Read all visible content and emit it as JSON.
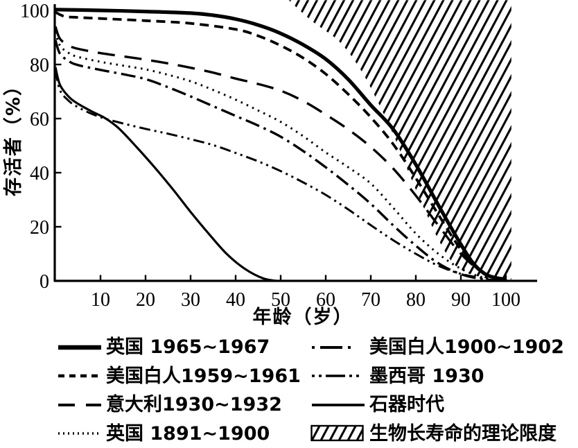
{
  "figure": {
    "x_axis_title": "年龄（岁）",
    "y_axis_title": "存活者（%）",
    "y_ticks": [
      "100",
      "80",
      "60",
      "40",
      "20",
      "0"
    ],
    "x_ticks": [
      "10",
      "20",
      "30",
      "40",
      "50",
      "60",
      "70",
      "80",
      "90",
      "100"
    ]
  },
  "colors": {
    "ink": "#000000",
    "background": "#ffffff"
  },
  "chart_data": {
    "type": "line",
    "title": "",
    "xlabel": "年龄（岁）",
    "ylabel": "存活者（%）",
    "xlim": [
      0,
      105
    ],
    "ylim": [
      0,
      100
    ],
    "grid": false,
    "legend_position": "below",
    "x_unit": "岁",
    "y_unit": "%",
    "series": [
      {
        "id": "uk-1965-1967",
        "name": "英国 1965~1967",
        "style": "thick-solid",
        "points": [
          [
            0,
            100.3
          ],
          [
            10,
            100
          ],
          [
            20,
            99.6
          ],
          [
            30,
            99
          ],
          [
            35,
            98.2
          ],
          [
            40,
            96.8
          ],
          [
            45,
            94.6
          ],
          [
            50,
            91.5
          ],
          [
            55,
            87.3
          ],
          [
            60,
            82
          ],
          [
            65,
            74.5
          ],
          [
            70,
            65
          ],
          [
            75,
            56
          ],
          [
            80,
            43
          ],
          [
            85,
            28
          ],
          [
            90,
            13.5
          ],
          [
            93,
            6
          ],
          [
            96,
            2
          ],
          [
            100,
            0.5
          ]
        ]
      },
      {
        "id": "us-white-1959-1961",
        "name": "美国白人1959~1961",
        "style": "dashed",
        "points": [
          [
            0,
            99.3
          ],
          [
            2,
            97.8
          ],
          [
            5,
            97.4
          ],
          [
            10,
            97
          ],
          [
            20,
            96.2
          ],
          [
            30,
            95.2
          ],
          [
            40,
            93
          ],
          [
            45,
            90.6
          ],
          [
            50,
            87
          ],
          [
            55,
            82.4
          ],
          [
            60,
            76.5
          ],
          [
            65,
            69
          ],
          [
            70,
            60.5
          ],
          [
            75,
            50.5
          ],
          [
            80,
            38
          ],
          [
            85,
            24.5
          ],
          [
            90,
            11.5
          ],
          [
            94,
            4
          ],
          [
            97,
            1.2
          ],
          [
            100,
            0.3
          ]
        ]
      },
      {
        "id": "italy-1930-1932",
        "name": "意大利1930~1932",
        "style": "long-dash",
        "points": [
          [
            0,
            94
          ],
          [
            1,
            89.5
          ],
          [
            3,
            87
          ],
          [
            5,
            85.8
          ],
          [
            10,
            84.2
          ],
          [
            15,
            83
          ],
          [
            20,
            81.8
          ],
          [
            25,
            80.4
          ],
          [
            30,
            78.8
          ],
          [
            35,
            77
          ],
          [
            40,
            74.8
          ],
          [
            45,
            72.8
          ],
          [
            50,
            70.3
          ],
          [
            55,
            66.5
          ],
          [
            60,
            61.5
          ],
          [
            65,
            56
          ],
          [
            70,
            49.5
          ],
          [
            75,
            41.5
          ],
          [
            80,
            31.5
          ],
          [
            85,
            20.5
          ],
          [
            90,
            10
          ],
          [
            95,
            3
          ],
          [
            100,
            0.5
          ]
        ]
      },
      {
        "id": "uk-1891-1900",
        "name": "英国 1891~1900",
        "style": "dotted",
        "points": [
          [
            0,
            92
          ],
          [
            1,
            87
          ],
          [
            3,
            84.2
          ],
          [
            5,
            82.8
          ],
          [
            10,
            81
          ],
          [
            15,
            79.6
          ],
          [
            20,
            78.2
          ],
          [
            25,
            76.2
          ],
          [
            30,
            73.8
          ],
          [
            35,
            70.6
          ],
          [
            40,
            67
          ],
          [
            45,
            63
          ],
          [
            50,
            58.8
          ],
          [
            55,
            53.5
          ],
          [
            60,
            47.5
          ],
          [
            65,
            42
          ],
          [
            70,
            36
          ],
          [
            75,
            27
          ],
          [
            80,
            17.5
          ],
          [
            85,
            10
          ],
          [
            90,
            4.5
          ],
          [
            95,
            1.2
          ],
          [
            100,
            0.2
          ]
        ]
      },
      {
        "id": "us-white-1900-1902",
        "name": "美国白人1900~1902",
        "style": "dash-dot",
        "points": [
          [
            0,
            89
          ],
          [
            1,
            84
          ],
          [
            3,
            81.2
          ],
          [
            5,
            79.8
          ],
          [
            10,
            78
          ],
          [
            15,
            76.4
          ],
          [
            20,
            74.6
          ],
          [
            25,
            71.6
          ],
          [
            30,
            68.2
          ],
          [
            35,
            64.6
          ],
          [
            40,
            61
          ],
          [
            45,
            57.4
          ],
          [
            50,
            53.3
          ],
          [
            55,
            48
          ],
          [
            60,
            42
          ],
          [
            65,
            35.5
          ],
          [
            70,
            28.5
          ],
          [
            75,
            20.5
          ],
          [
            80,
            13
          ],
          [
            85,
            6.5
          ],
          [
            90,
            2.5
          ],
          [
            95,
            0.6
          ],
          [
            100,
            0.1
          ]
        ]
      },
      {
        "id": "mexico-1930",
        "name": "墨西哥 1930",
        "style": "dash-dot-dot",
        "points": [
          [
            0,
            78
          ],
          [
            1,
            70.5
          ],
          [
            3,
            66.5
          ],
          [
            5,
            64.2
          ],
          [
            8,
            61.8
          ],
          [
            11,
            60
          ],
          [
            15,
            58.2
          ],
          [
            20,
            56.2
          ],
          [
            25,
            54.4
          ],
          [
            30,
            52.4
          ],
          [
            35,
            50.2
          ],
          [
            40,
            47.3
          ],
          [
            45,
            44.2
          ],
          [
            50,
            40.6
          ],
          [
            55,
            36.4
          ],
          [
            60,
            31.8
          ],
          [
            65,
            26.4
          ],
          [
            70,
            20.6
          ],
          [
            75,
            15
          ],
          [
            80,
            10
          ],
          [
            85,
            5.6
          ],
          [
            90,
            2.6
          ],
          [
            95,
            1
          ],
          [
            100,
            0.2
          ]
        ]
      },
      {
        "id": "stone-age",
        "name": "石器时代",
        "style": "thin-solid",
        "points": [
          [
            0,
            79
          ],
          [
            1,
            72.5
          ],
          [
            3,
            68
          ],
          [
            5,
            65.5
          ],
          [
            8,
            62.7
          ],
          [
            11,
            60.2
          ],
          [
            14,
            56.5
          ],
          [
            18,
            49.5
          ],
          [
            22,
            42
          ],
          [
            26,
            34
          ],
          [
            30,
            25.5
          ],
          [
            34,
            17.5
          ],
          [
            38,
            10
          ],
          [
            42,
            4.5
          ],
          [
            46,
            1
          ],
          [
            49,
            0
          ]
        ]
      }
    ],
    "limit_region": {
      "id": "bio-longevity-limit",
      "label": "生物长寿命的理论限度",
      "left_boundary": [
        [
          51.8,
          103.8
        ],
        [
          57,
          96
        ],
        [
          63,
          88.5
        ],
        [
          67.7,
          78.2
        ],
        [
          71.8,
          65.4
        ],
        [
          75.4,
          52.6
        ],
        [
          78.5,
          39.7
        ],
        [
          81.8,
          26.9
        ],
        [
          85.4,
          14.1
        ],
        [
          89.2,
          5.1
        ],
        [
          95.4,
          1.0
        ],
        [
          101.2,
          0.5
        ]
      ],
      "right_edge_age": 101.2,
      "top_pct": 103.8
    }
  },
  "legend": {
    "left_column": [
      {
        "id": "uk-1965-1967",
        "label": "英国 1965~1967",
        "style": "thick-solid"
      },
      {
        "id": "us-white-1959-1961",
        "label": "美国白人1959~1961",
        "style": "dashed"
      },
      {
        "id": "italy-1930-1932",
        "label": "意大利1930~1932",
        "style": "long-dash"
      },
      {
        "id": "uk-1891-1900",
        "label": "英国 1891~1900",
        "style": "dotted"
      }
    ],
    "right_column": [
      {
        "id": "us-white-1900-1902",
        "label": "美国白人1900~1902",
        "style": "dash-dot"
      },
      {
        "id": "mexico-1930",
        "label": "墨西哥 1930",
        "style": "dash-dot-dot"
      },
      {
        "id": "stone-age",
        "label": "石器时代",
        "style": "thin-solid"
      },
      {
        "id": "bio-longevity-limit",
        "label": "生物长寿命的理论限度",
        "style": "hatch"
      }
    ]
  }
}
